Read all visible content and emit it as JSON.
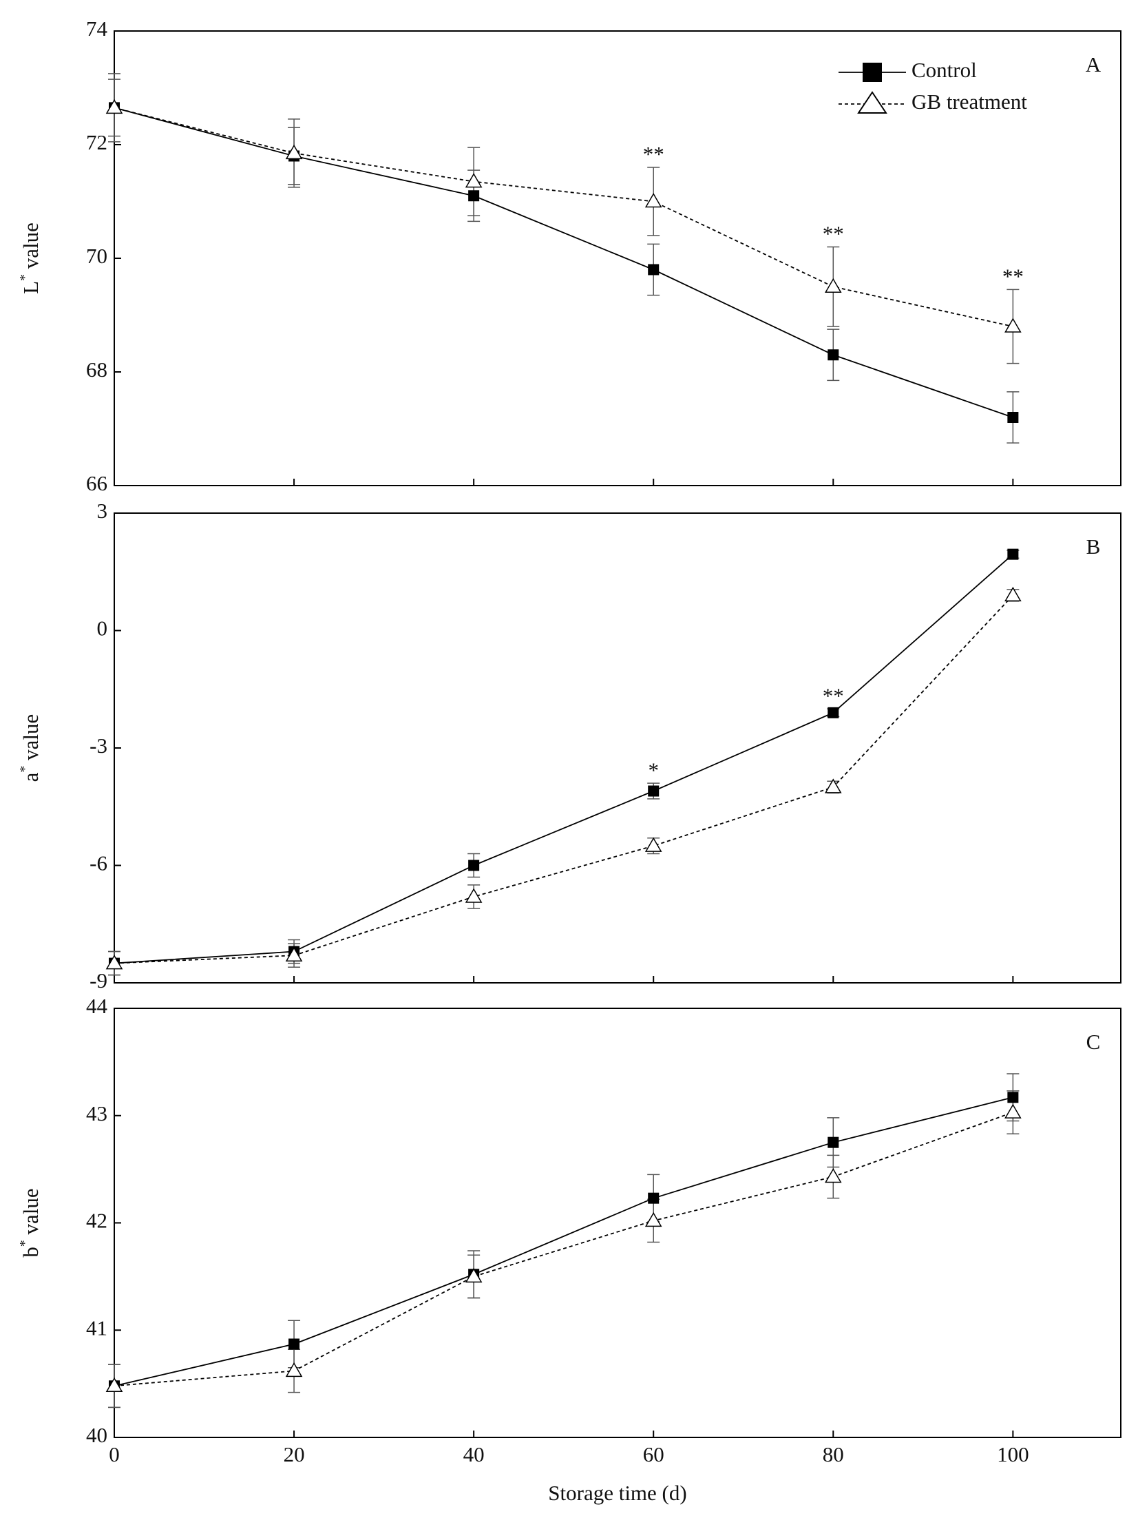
{
  "chart_data": [
    {
      "type": "line",
      "panel_label": "A",
      "ylabel_parts": [
        "L",
        "*",
        " value"
      ],
      "x": [
        0,
        20,
        40,
        60,
        80,
        100
      ],
      "xlim": [
        0,
        112
      ],
      "xticks": [
        0,
        20,
        40,
        60,
        80,
        100
      ],
      "show_xtick_labels": false,
      "ylim": [
        66,
        74
      ],
      "yticks": [
        66,
        68,
        70,
        72,
        74
      ],
      "legend": "upper right",
      "series": [
        {
          "name": "Control",
          "color": "#000000",
          "marker": "square",
          "linestyle": "solid",
          "values": [
            72.65,
            71.8,
            71.1,
            69.8,
            68.3,
            67.2
          ],
          "errors": [
            0.5,
            0.5,
            0.45,
            0.45,
            0.45,
            0.45
          ]
        },
        {
          "name": "GB treatment",
          "color": "#000000",
          "marker": "triangle",
          "linestyle": "dashed",
          "values": [
            72.65,
            71.85,
            71.35,
            71.0,
            69.5,
            68.8
          ],
          "errors": [
            0.6,
            0.6,
            0.6,
            0.6,
            0.7,
            0.65
          ]
        }
      ],
      "significance": [
        null,
        null,
        null,
        "**",
        "**",
        "**"
      ]
    },
    {
      "type": "line",
      "panel_label": "B",
      "ylabel_parts": [
        "a",
        "*",
        " value"
      ],
      "x": [
        0,
        20,
        40,
        60,
        80,
        100
      ],
      "xlim": [
        0,
        112
      ],
      "xticks": [
        0,
        20,
        40,
        60,
        80,
        100
      ],
      "show_xtick_labels": false,
      "ylim": [
        -9,
        3
      ],
      "yticks": [
        -9,
        -6,
        -3,
        0,
        3
      ],
      "series": [
        {
          "color": "#000000",
          "marker": "square",
          "linestyle": "solid",
          "values": [
            -8.5,
            -8.2,
            -6.0,
            -4.1,
            -2.1,
            1.95
          ],
          "errors": [
            0.3,
            0.3,
            0.3,
            0.2,
            0.1,
            0.1
          ]
        },
        {
          "color": "#000000",
          "marker": "triangle",
          "linestyle": "dashed",
          "values": [
            -8.5,
            -8.3,
            -6.8,
            -5.5,
            -4.0,
            0.9
          ],
          "errors": [
            0.3,
            0.3,
            0.3,
            0.2,
            0.15,
            0.15
          ]
        }
      ],
      "significance": [
        null,
        null,
        null,
        "*",
        "**",
        null
      ]
    },
    {
      "type": "line",
      "panel_label": "C",
      "ylabel_parts": [
        "b",
        "*",
        " value"
      ],
      "xlabel": "Storage time (d)",
      "x": [
        0,
        20,
        40,
        60,
        80,
        100
      ],
      "xlim": [
        0,
        112
      ],
      "xticks": [
        0,
        20,
        40,
        60,
        80,
        100
      ],
      "show_xtick_labels": true,
      "ylim": [
        40,
        44
      ],
      "yticks": [
        40,
        41,
        42,
        43,
        44
      ],
      "series": [
        {
          "color": "#000000",
          "marker": "square",
          "linestyle": "solid",
          "values": [
            40.48,
            40.87,
            41.52,
            42.23,
            42.75,
            43.17
          ],
          "errors": [
            0.2,
            0.22,
            0.22,
            0.22,
            0.23,
            0.22
          ]
        },
        {
          "color": "#000000",
          "marker": "triangle",
          "linestyle": "dashed",
          "values": [
            40.48,
            40.62,
            41.5,
            42.02,
            42.43,
            43.03
          ],
          "errors": [
            0.2,
            0.2,
            0.2,
            0.2,
            0.2,
            0.2
          ]
        }
      ]
    }
  ]
}
